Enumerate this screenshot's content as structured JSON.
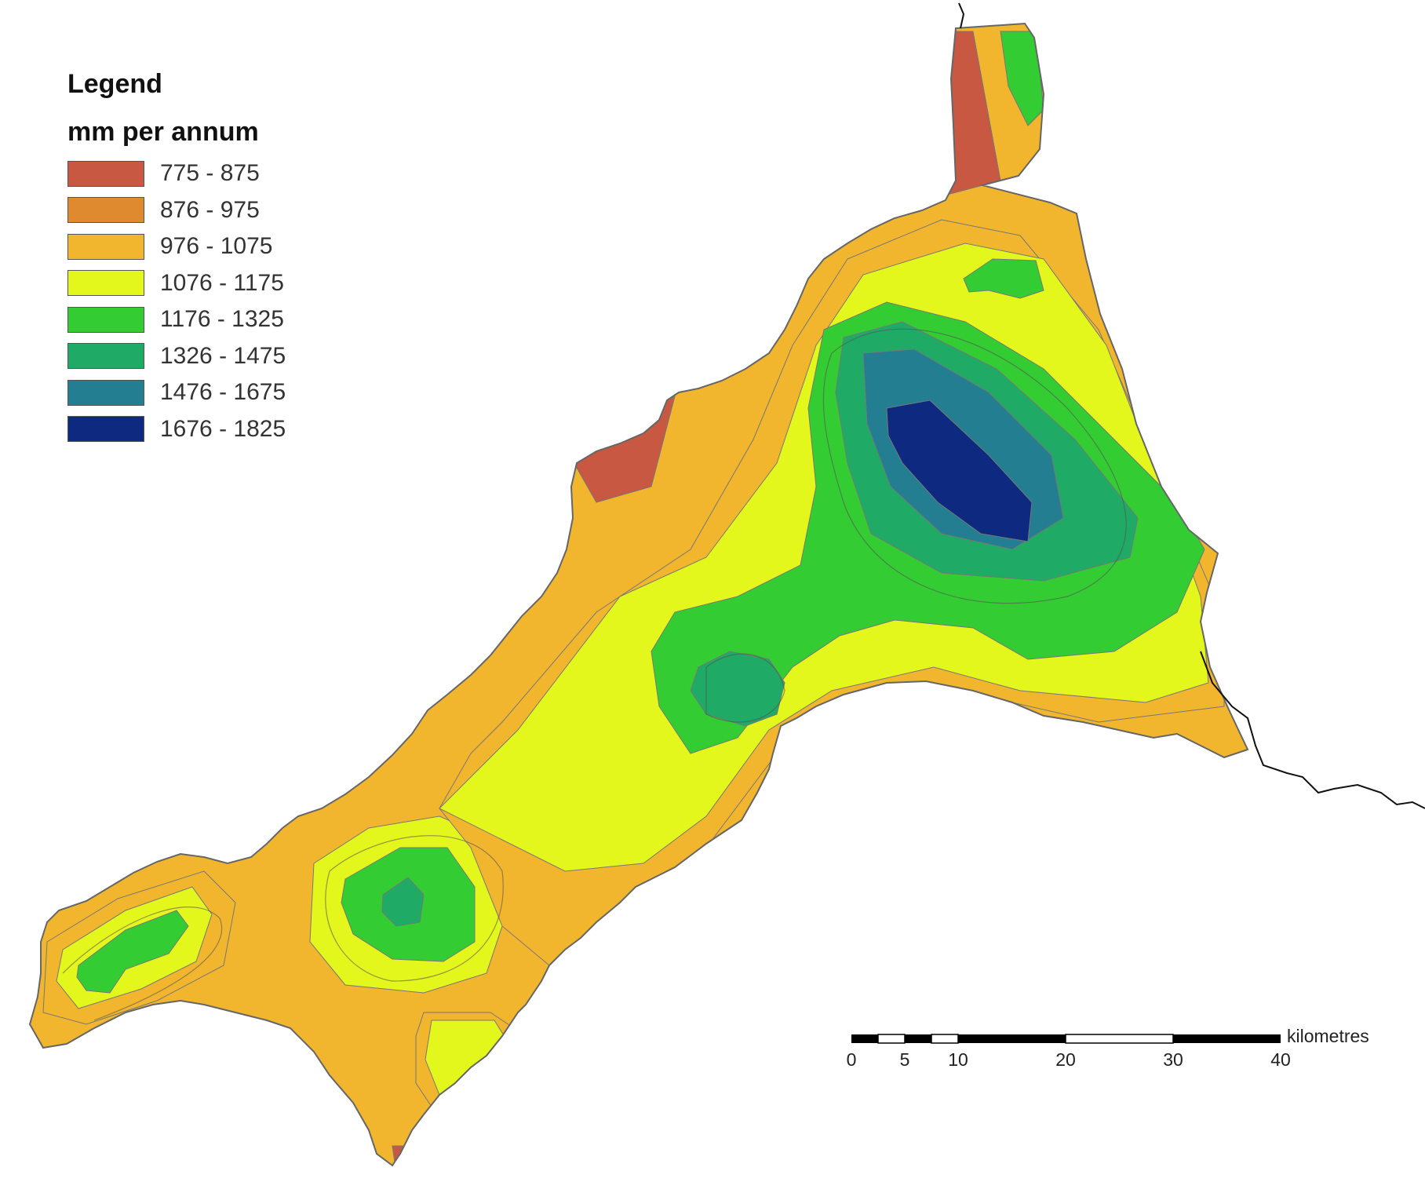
{
  "legend": {
    "title": "Legend",
    "units": "mm per annum",
    "classes": [
      {
        "label": "775 - 875",
        "color": "#c95843"
      },
      {
        "label": "876 - 975",
        "color": "#e08a30"
      },
      {
        "label": "976 - 1075",
        "color": "#f2b62e"
      },
      {
        "label": "1076 - 1175",
        "color": "#e4f71c"
      },
      {
        "label": "1176 - 1325",
        "color": "#33cc33"
      },
      {
        "label": "1326 - 1475",
        "color": "#1faa66"
      },
      {
        "label": "1476 - 1675",
        "color": "#227e90"
      },
      {
        "label": "1676 - 1825",
        "color": "#0d2a80"
      }
    ]
  },
  "scale_bar": {
    "unit": "kilometres",
    "ticks": [
      "0",
      "5",
      "10",
      "20",
      "30",
      "40"
    ]
  }
}
